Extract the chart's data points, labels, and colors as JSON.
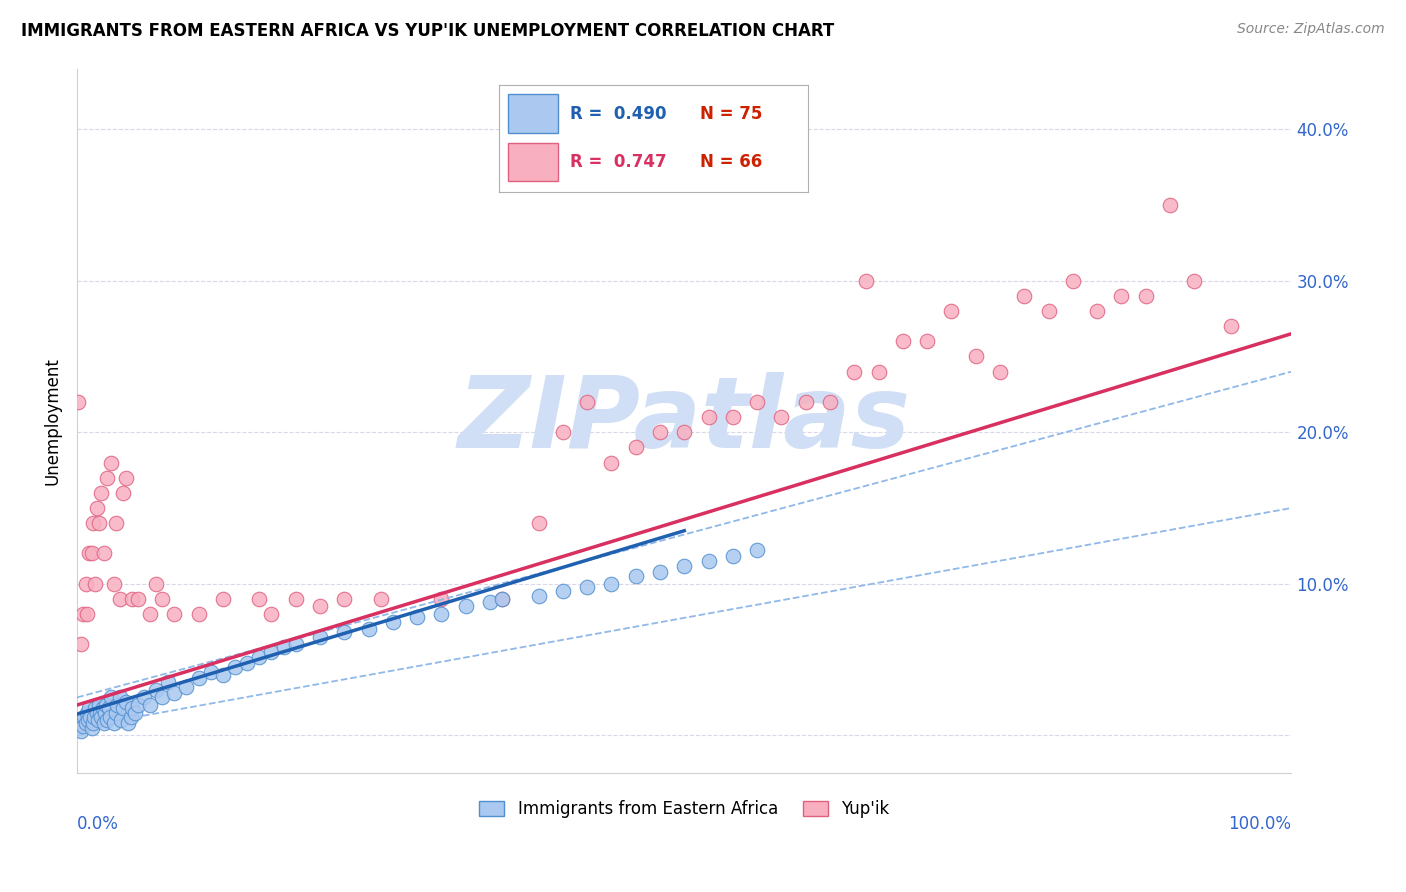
{
  "title": "IMMIGRANTS FROM EASTERN AFRICA VS YUP'IK UNEMPLOYMENT CORRELATION CHART",
  "source": "Source: ZipAtlas.com",
  "ylabel": "Unemployment",
  "yticks": [
    0.0,
    0.1,
    0.2,
    0.3,
    0.4
  ],
  "ytick_labels": [
    "",
    "10.0%",
    "20.0%",
    "30.0%",
    "40.0%"
  ],
  "blue_R": 0.49,
  "blue_N": 75,
  "pink_R": 0.747,
  "pink_N": 66,
  "blue_scatter_color": "#aac8f0",
  "blue_edge_color": "#5090d0",
  "pink_scatter_color": "#f8b0c0",
  "pink_edge_color": "#e06080",
  "blue_line_color": "#2060b0",
  "pink_line_color": "#d83060",
  "ci_line_color": "#90b8e8",
  "watermark": "ZIPatlas",
  "watermark_color": "#d0dff5",
  "blue_points": [
    [
      0.001,
      0.005
    ],
    [
      0.002,
      0.008
    ],
    [
      0.003,
      0.003
    ],
    [
      0.004,
      0.01
    ],
    [
      0.005,
      0.006
    ],
    [
      0.006,
      0.012
    ],
    [
      0.007,
      0.008
    ],
    [
      0.008,
      0.015
    ],
    [
      0.009,
      0.01
    ],
    [
      0.01,
      0.018
    ],
    [
      0.011,
      0.012
    ],
    [
      0.012,
      0.005
    ],
    [
      0.013,
      0.008
    ],
    [
      0.014,
      0.012
    ],
    [
      0.015,
      0.018
    ],
    [
      0.016,
      0.015
    ],
    [
      0.017,
      0.01
    ],
    [
      0.018,
      0.02
    ],
    [
      0.019,
      0.015
    ],
    [
      0.02,
      0.012
    ],
    [
      0.021,
      0.018
    ],
    [
      0.022,
      0.008
    ],
    [
      0.023,
      0.015
    ],
    [
      0.024,
      0.02
    ],
    [
      0.025,
      0.01
    ],
    [
      0.026,
      0.018
    ],
    [
      0.027,
      0.012
    ],
    [
      0.028,
      0.025
    ],
    [
      0.03,
      0.008
    ],
    [
      0.032,
      0.015
    ],
    [
      0.033,
      0.02
    ],
    [
      0.035,
      0.025
    ],
    [
      0.036,
      0.01
    ],
    [
      0.038,
      0.018
    ],
    [
      0.04,
      0.022
    ],
    [
      0.042,
      0.008
    ],
    [
      0.044,
      0.012
    ],
    [
      0.045,
      0.018
    ],
    [
      0.048,
      0.015
    ],
    [
      0.05,
      0.02
    ],
    [
      0.055,
      0.025
    ],
    [
      0.06,
      0.02
    ],
    [
      0.065,
      0.03
    ],
    [
      0.07,
      0.025
    ],
    [
      0.075,
      0.035
    ],
    [
      0.08,
      0.028
    ],
    [
      0.09,
      0.032
    ],
    [
      0.1,
      0.038
    ],
    [
      0.11,
      0.042
    ],
    [
      0.12,
      0.04
    ],
    [
      0.13,
      0.045
    ],
    [
      0.14,
      0.048
    ],
    [
      0.15,
      0.052
    ],
    [
      0.16,
      0.055
    ],
    [
      0.17,
      0.058
    ],
    [
      0.18,
      0.06
    ],
    [
      0.2,
      0.065
    ],
    [
      0.22,
      0.068
    ],
    [
      0.24,
      0.07
    ],
    [
      0.26,
      0.075
    ],
    [
      0.28,
      0.078
    ],
    [
      0.3,
      0.08
    ],
    [
      0.32,
      0.085
    ],
    [
      0.34,
      0.088
    ],
    [
      0.35,
      0.09
    ],
    [
      0.38,
      0.092
    ],
    [
      0.4,
      0.095
    ],
    [
      0.42,
      0.098
    ],
    [
      0.44,
      0.1
    ],
    [
      0.46,
      0.105
    ],
    [
      0.48,
      0.108
    ],
    [
      0.5,
      0.112
    ],
    [
      0.52,
      0.115
    ],
    [
      0.54,
      0.118
    ],
    [
      0.56,
      0.122
    ]
  ],
  "pink_points": [
    [
      0.001,
      0.22
    ],
    [
      0.003,
      0.06
    ],
    [
      0.005,
      0.08
    ],
    [
      0.007,
      0.1
    ],
    [
      0.008,
      0.08
    ],
    [
      0.01,
      0.12
    ],
    [
      0.012,
      0.12
    ],
    [
      0.013,
      0.14
    ],
    [
      0.015,
      0.1
    ],
    [
      0.016,
      0.15
    ],
    [
      0.018,
      0.14
    ],
    [
      0.02,
      0.16
    ],
    [
      0.022,
      0.12
    ],
    [
      0.025,
      0.17
    ],
    [
      0.028,
      0.18
    ],
    [
      0.03,
      0.1
    ],
    [
      0.032,
      0.14
    ],
    [
      0.035,
      0.09
    ],
    [
      0.038,
      0.16
    ],
    [
      0.04,
      0.17
    ],
    [
      0.045,
      0.09
    ],
    [
      0.05,
      0.09
    ],
    [
      0.06,
      0.08
    ],
    [
      0.065,
      0.1
    ],
    [
      0.07,
      0.09
    ],
    [
      0.08,
      0.08
    ],
    [
      0.1,
      0.08
    ],
    [
      0.12,
      0.09
    ],
    [
      0.15,
      0.09
    ],
    [
      0.16,
      0.08
    ],
    [
      0.18,
      0.09
    ],
    [
      0.2,
      0.085
    ],
    [
      0.22,
      0.09
    ],
    [
      0.25,
      0.09
    ],
    [
      0.3,
      0.09
    ],
    [
      0.35,
      0.09
    ],
    [
      0.38,
      0.14
    ],
    [
      0.4,
      0.2
    ],
    [
      0.42,
      0.22
    ],
    [
      0.44,
      0.18
    ],
    [
      0.46,
      0.19
    ],
    [
      0.48,
      0.2
    ],
    [
      0.5,
      0.2
    ],
    [
      0.52,
      0.21
    ],
    [
      0.54,
      0.21
    ],
    [
      0.56,
      0.22
    ],
    [
      0.58,
      0.21
    ],
    [
      0.6,
      0.22
    ],
    [
      0.62,
      0.22
    ],
    [
      0.64,
      0.24
    ],
    [
      0.65,
      0.3
    ],
    [
      0.66,
      0.24
    ],
    [
      0.68,
      0.26
    ],
    [
      0.7,
      0.26
    ],
    [
      0.72,
      0.28
    ],
    [
      0.74,
      0.25
    ],
    [
      0.76,
      0.24
    ],
    [
      0.78,
      0.29
    ],
    [
      0.8,
      0.28
    ],
    [
      0.82,
      0.3
    ],
    [
      0.84,
      0.28
    ],
    [
      0.86,
      0.29
    ],
    [
      0.88,
      0.29
    ],
    [
      0.9,
      0.35
    ],
    [
      0.92,
      0.3
    ],
    [
      0.95,
      0.27
    ]
  ],
  "blue_line": [
    [
      0.0,
      0.014
    ],
    [
      0.5,
      0.135
    ]
  ],
  "blue_ci_upper": [
    [
      0.0,
      0.025
    ],
    [
      1.0,
      0.24
    ]
  ],
  "blue_ci_lower": [
    [
      0.0,
      0.005
    ],
    [
      1.0,
      0.15
    ]
  ],
  "pink_line": [
    [
      0.0,
      0.02
    ],
    [
      1.0,
      0.265
    ]
  ],
  "xlim": [
    0.0,
    1.0
  ],
  "ylim": [
    -0.025,
    0.44
  ]
}
